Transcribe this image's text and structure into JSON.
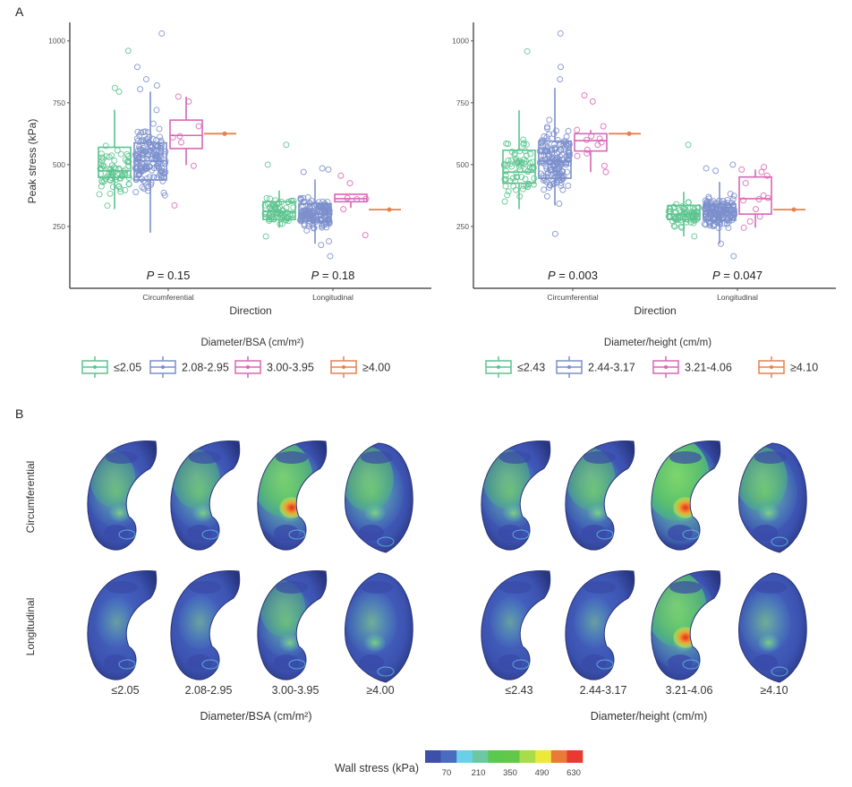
{
  "panel_labels": {
    "a": "A",
    "b": "B"
  },
  "chart_data": [
    {
      "type": "box",
      "id": "bsa",
      "title": "",
      "xlabel": "Direction",
      "ylabel": "Peak stress (kPa)",
      "ylim": [
        0,
        1075
      ],
      "yticks": [
        250,
        500,
        750,
        1000
      ],
      "grid": false,
      "categories": [
        "Circumferential",
        "Longitudinal"
      ],
      "pvalues": [
        "0.15",
        "0.18"
      ],
      "legend": {
        "title": "Diameter/BSA (cm/m²)",
        "placement": "bottom",
        "entries": [
          "≤2.05",
          "2.08-2.95",
          "3.00-3.95",
          "≥4.00"
        ]
      },
      "series": [
        {
          "name": "≤2.05",
          "color": "#5cc48f",
          "boxes": [
            {
              "q1": 448,
              "median": 475,
              "q3": 570,
              "wlo": 320,
              "whi": 722,
              "outliers": [
                960,
                810,
                795
              ],
              "n": 70
            },
            {
              "q1": 278,
              "median": 310,
              "q3": 350,
              "wlo": 245,
              "whi": 395,
              "outliers": [
                580,
                500,
                210
              ],
              "n": 70
            }
          ]
        },
        {
          "name": "2.08-2.95",
          "color": "#7b8fcc",
          "boxes": [
            {
              "q1": 438,
              "median": 515,
              "q3": 588,
              "wlo": 225,
              "whi": 795,
              "outliers": [
                1030,
                895,
                845,
                820,
                805
              ],
              "n": 160
            },
            {
              "q1": 272,
              "median": 300,
              "q3": 342,
              "wlo": 180,
              "whi": 440,
              "outliers": [
                485,
                480,
                470,
                130,
                175,
                190
              ],
              "n": 160
            }
          ]
        },
        {
          "name": "3.00-3.95",
          "color": "#d966b5",
          "boxes": [
            {
              "q1": 565,
              "median": 618,
              "q3": 680,
              "wlo": 498,
              "whi": 775,
              "outliers": [
                335
              ],
              "points": [
                775,
                755,
                655,
                615,
                610,
                590,
                495,
                335
              ]
            },
            {
              "q1": 350,
              "median": 362,
              "q3": 380,
              "wlo": 325,
              "whi": 380,
              "outliers": [
                455,
                425,
                215
              ],
              "points": [
                455,
                425,
                365,
                362,
                360,
                320,
                215
              ]
            }
          ]
        },
        {
          "name": "≥4.00",
          "color": "#e8804f",
          "boxes": [
            {
              "single": 625
            },
            {
              "single": 318
            }
          ]
        }
      ]
    },
    {
      "type": "box",
      "id": "height",
      "title": "",
      "xlabel": "Direction",
      "ylabel": "",
      "ylim": [
        0,
        1075
      ],
      "yticks": [
        250,
        500,
        750,
        1000
      ],
      "grid": false,
      "categories": [
        "Circumferential",
        "Longitudinal"
      ],
      "pvalues": [
        "0.003",
        "0.047"
      ],
      "legend": {
        "title": "Diameter/height (cm/m)",
        "placement": "bottom",
        "entries": [
          "≤2.43",
          "2.44-3.17",
          "3.21-4.06",
          "≥4.10"
        ]
      },
      "series": [
        {
          "name": "≤2.43",
          "color": "#5cc48f",
          "boxes": [
            {
              "q1": 425,
              "median": 470,
              "q3": 558,
              "wlo": 320,
              "whi": 720,
              "outliers": [
                958
              ],
              "n": 70
            },
            {
              "q1": 278,
              "median": 300,
              "q3": 335,
              "wlo": 210,
              "whi": 390,
              "outliers": [
                580,
                210
              ],
              "n": 70
            }
          ]
        },
        {
          "name": "2.44-3.17",
          "color": "#7b8fcc",
          "boxes": [
            {
              "q1": 445,
              "median": 515,
              "q3": 595,
              "wlo": 335,
              "whi": 810,
              "outliers": [
                1030,
                895,
                845,
                220
              ],
              "n": 160
            },
            {
              "q1": 275,
              "median": 310,
              "q3": 340,
              "wlo": 180,
              "whi": 430,
              "outliers": [
                500,
                485,
                475,
                130,
                180
              ],
              "n": 160
            }
          ]
        },
        {
          "name": "3.21-4.06",
          "color": "#d966b5",
          "boxes": [
            {
              "q1": 555,
              "median": 597,
              "q3": 625,
              "wlo": 470,
              "whi": 640,
              "outliers": [
                780,
                755
              ],
              "points": [
                780,
                755,
                655,
                640,
                615,
                605,
                600,
                590,
                580,
                560,
                545,
                535,
                495,
                470
              ]
            },
            {
              "q1": 300,
              "median": 362,
              "q3": 450,
              "wlo": 245,
              "whi": 480,
              "outliers": [],
              "points": [
                490,
                480,
                470,
                455,
                425,
                375,
                365,
                360,
                355,
                320,
                290,
                270,
                245
              ]
            }
          ]
        },
        {
          "name": "≥4.10",
          "color": "#e8804f",
          "boxes": [
            {
              "single": 625
            },
            {
              "single": 318
            }
          ]
        }
      ]
    }
  ],
  "stress_maps": {
    "rows": [
      "Circumferential",
      "Longitudinal"
    ],
    "groups": [
      {
        "axis_title": "Diameter/BSA (cm/m²)",
        "labels": [
          "≤2.05",
          "2.08-2.95",
          "3.00-3.95",
          "≥4.00"
        ]
      },
      {
        "axis_title": "Diameter/height (cm/m)",
        "labels": [
          "≤2.43",
          "2.44-3.17",
          "3.21-4.06",
          "≥4.10"
        ]
      }
    ],
    "colorbar": {
      "title": "Wall stress (kPa)",
      "colors": [
        "#3d4fa8",
        "#4a6cc0",
        "#6ad0e8",
        "#6cc8a0",
        "#5cc850",
        "#62c84a",
        "#a8dc4a",
        "#ece83c",
        "#ea7a38",
        "#e83a32"
      ],
      "ticks": [
        "70",
        "210",
        "350",
        "490",
        "630"
      ]
    }
  }
}
